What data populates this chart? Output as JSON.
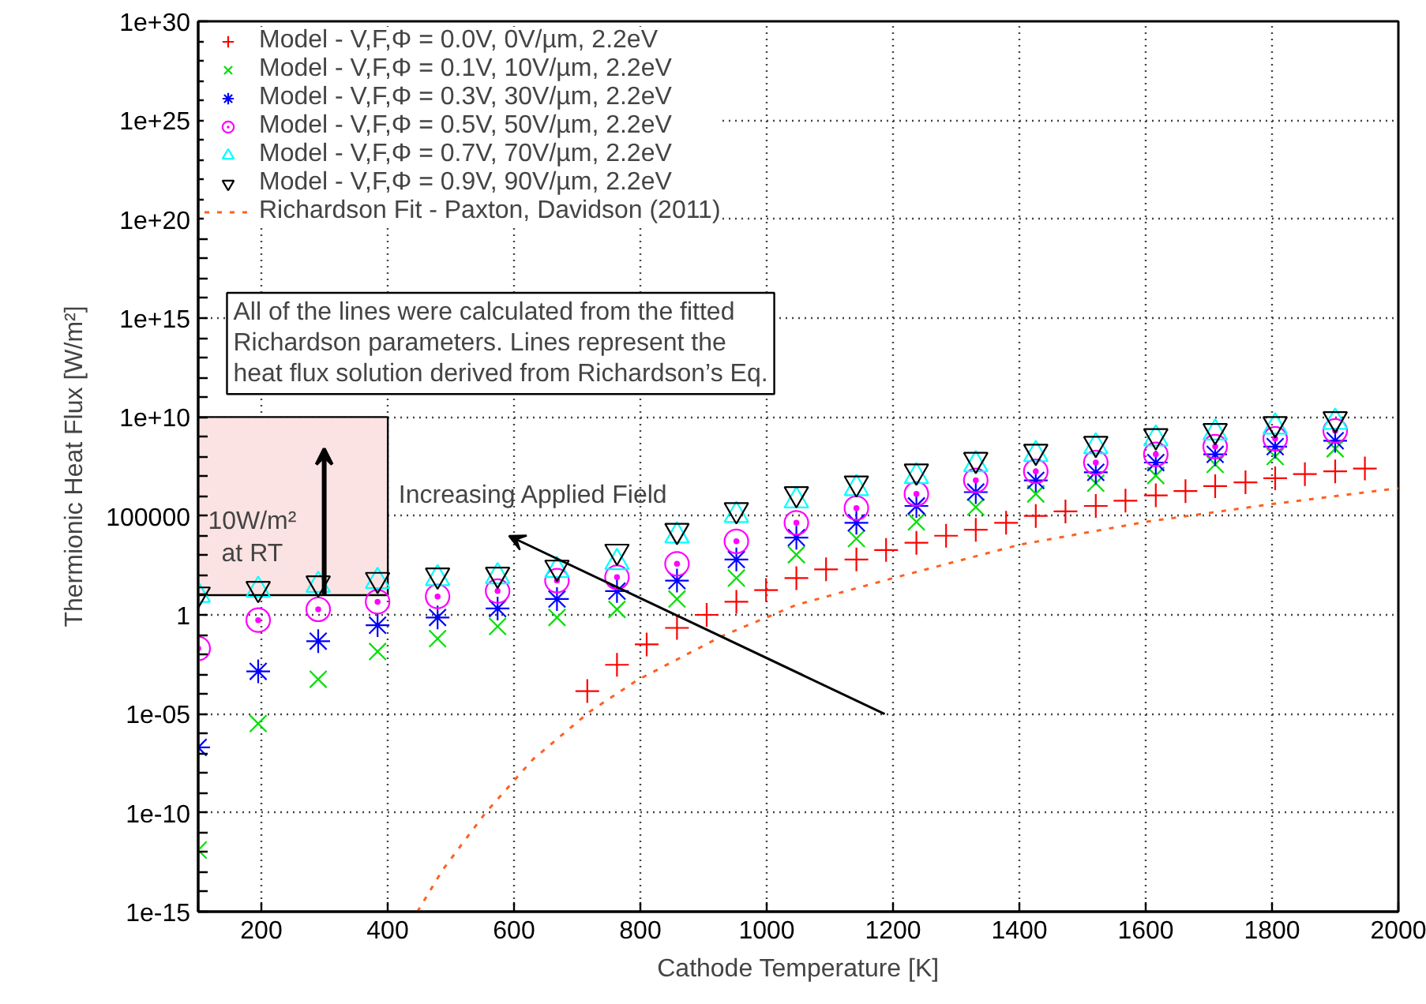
{
  "chart_data": {
    "type": "scatter",
    "xlabel": "Cathode Temperature [K]",
    "ylabel": "Thermionic Heat Flux [W/m²]",
    "x": [
      100,
      195,
      290,
      384,
      479,
      574,
      668,
      763,
      858,
      952,
      1047,
      1142,
      1237,
      1331,
      1426,
      1521,
      1616,
      1710,
      1805,
      1900
    ],
    "series": [
      {
        "name": "Model - V,F,Φ = 0.0V, 0V/µm, 2.2eV",
        "color": "#ff0000",
        "marker": "cross",
        "x": [
          716,
          763,
          810,
          858,
          905,
          952,
          999,
          1047,
          1094,
          1142,
          1189,
          1237,
          1284,
          1331,
          1379,
          1426,
          1473,
          1521,
          1568,
          1616,
          1663,
          1710,
          1758,
          1805,
          1852,
          1900,
          1947
        ],
        "values": [
          0.00014,
          0.003,
          0.032,
          0.22,
          1,
          4.6,
          18.0,
          72.0,
          200.0,
          630.0,
          1900.0,
          4400.0,
          10000.0,
          20000.0,
          45000.0,
          100000.0,
          170000.0,
          320000.0,
          590000.0,
          1100000.0,
          1800000.0,
          3200000.0,
          5000000.0,
          8000000.0,
          13000000.0,
          18000000.0,
          25000000.0
        ]
      },
      {
        "name": "Model - V,F,Φ = 0.1V, 10V/µm, 2.2eV",
        "color": "#00e000",
        "values": [
          1.3e-12,
          3.2e-06,
          0.00056,
          0.014,
          0.063,
          0.26,
          0.74,
          1.9,
          6.3,
          72.0,
          1100.0,
          7200.0,
          50000.0,
          280000.0,
          1300000.0,
          4500000.0,
          11000000.0,
          40000000.0,
          100000000.0,
          250000000.0
        ]
      },
      {
        "name": "Model - V,F,Φ = 0.3V, 30V/µm, 2.2eV",
        "color": "#0000ff",
        "values": [
          2e-07,
          0.0014,
          0.047,
          0.3,
          0.74,
          2.1,
          6.3,
          16.0,
          54.0,
          630.0,
          8000.0,
          45000.0,
          320000.0,
          1600000.0,
          6300000.0,
          16000000.0,
          50000000.0,
          130000000.0,
          320000000.0,
          630000000.0
        ]
      },
      {
        "name": "Model - V,F,Φ = 0.5V, 50V/µm, 2.2eV",
        "color": "#ff00ff",
        "marker": "circle",
        "values": [
          0.02,
          0.54,
          1.9,
          4.6,
          8.5,
          16.0,
          54.0,
          80.0,
          380.0,
          5200.0,
          45000.0,
          250000.0,
          1300000.0,
          6300000.0,
          18000000.0,
          50000000.0,
          130000000.0,
          320000000.0,
          800000000.0,
          2000000000.0
        ]
      },
      {
        "name": "Model - V,F,Φ = 0.7V, 70V/µm, 2.2eV",
        "color": "#00ffff",
        "marker": "triangle",
        "values": [
          10.0,
          18.0,
          32.0,
          50.0,
          70.0,
          87.0,
          180.0,
          450.0,
          10000.0,
          110000.0,
          600000.0,
          2500000.0,
          10000000.0,
          40000000.0,
          130000000.0,
          320000000.0,
          800000000.0,
          1600000000.0,
          3200000000.0,
          5600000000.0
        ]
      },
      {
        "name": "Model - V,F,Φ = 0.9V, 90V/µm, 2.2eV",
        "color": "#000000",
        "marker": "triangle_down",
        "values": [
          11.0,
          21.0,
          40.0,
          60.0,
          100.0,
          110.0,
          250.0,
          1600.0,
          18000.0,
          200000.0,
          1300000.0,
          4500000.0,
          18000000.0,
          70000000.0,
          180000000.0,
          450000000.0,
          1100000000.0,
          2000000000.0,
          4500000000.0,
          8000000000.0
        ]
      },
      {
        "name": "Richardson Fit - Paxton, Davidson (2011)",
        "color": "#ff6020",
        "type": "line",
        "line_style": "dashed",
        "x": [
          447,
          487,
          555,
          630,
          720,
          795,
          930,
          1047,
          1200,
          1400,
          1600,
          1800,
          2000
        ],
        "values": [
          1e-15,
          1.3e-13,
          1e-10,
          5e-08,
          1.3e-05,
          0.0005,
          0.087,
          3.2,
          72.0,
          3500.0,
          50000.0,
          400000.0,
          2500000.0
        ]
      }
    ],
    "xlim": [
      100,
      2000
    ],
    "xticks": [
      {
        "value": 100,
        "label": null
      },
      200,
      400,
      600,
      800,
      1000,
      1200,
      1400,
      1600,
      1800,
      2000
    ],
    "ylim": [
      1e-15,
      1e+30
    ],
    "yticks": [
      {
        "value": 1e-15,
        "label": "1e-15"
      },
      {
        "value": 1e-14,
        "label": null
      },
      {
        "value": 1e-13,
        "label": null
      },
      {
        "value": 1e-12,
        "label": null
      },
      {
        "value": 1e-11,
        "label": null
      },
      {
        "value": 1e-10,
        "label": "1e-10"
      },
      {
        "value": 1e-09,
        "label": null
      },
      {
        "value": 1e-08,
        "label": null
      },
      {
        "value": 1e-07,
        "label": null
      },
      {
        "value": 1e-06,
        "label": null
      },
      {
        "value": 1e-05,
        "label": "1e-05"
      },
      {
        "value": 0.0001,
        "label": null
      },
      {
        "value": 0.001,
        "label": null
      },
      {
        "value": 0.01,
        "label": null
      },
      {
        "value": 0.1,
        "label": null
      },
      1,
      {
        "value": 10,
        "label": null
      },
      {
        "value": 100,
        "label": null
      },
      {
        "value": 1000,
        "label": null
      },
      {
        "value": 10000,
        "label": null
      },
      100000,
      {
        "value": 1000000.0,
        "label": null
      },
      {
        "value": 10000000.0,
        "label": null
      },
      {
        "value": 100000000.0,
        "label": null
      },
      {
        "value": 1000000000.0,
        "label": null
      },
      {
        "value": 10000000000.0,
        "label": "1e+10"
      },
      {
        "value": 100000000000.0,
        "label": null
      },
      {
        "value": 1000000000000.0,
        "label": null
      },
      {
        "value": 10000000000000.0,
        "label": null
      },
      {
        "value": 100000000000000.0,
        "label": null
      },
      {
        "value": 1000000000000000.0,
        "label": "1e+15"
      },
      {
        "value": 1e+16,
        "label": null
      },
      {
        "value": 1e+17,
        "label": null
      },
      {
        "value": 1e+18,
        "label": null
      },
      {
        "value": 1e+19,
        "label": null
      },
      {
        "value": 1e+20,
        "label": "1e+20"
      },
      {
        "value": 1e+21,
        "label": null
      },
      {
        "value": 1e+22,
        "label": null
      },
      {
        "value": 1e+23,
        "label": null
      },
      {
        "value": 1e+24,
        "label": null
      },
      {
        "value": 1e+25,
        "label": "1e+25"
      },
      {
        "value": 1e+26,
        "label": null
      },
      {
        "value": 1e+27,
        "label": null
      },
      {
        "value": 1e+28,
        "label": null
      },
      {
        "value": 1e+29,
        "label": null
      },
      {
        "value": 1e+30,
        "label": "1e+30"
      }
    ],
    "log": "y",
    "grid": true,
    "legend": "top left",
    "bands": [
      {
        "axis": "y",
        "from": 10,
        "to": 10000000000.0,
        "label": "10W/m²\nat RT",
        "color": "#fbe3e3"
      }
    ],
    "annotations": [
      "All of the lines were calculated from the fitted\nRichardson parameters. Lines represent the\nheat flux solution derived from Richardson’s Eq.",
      "Increasing Applied Field"
    ]
  }
}
